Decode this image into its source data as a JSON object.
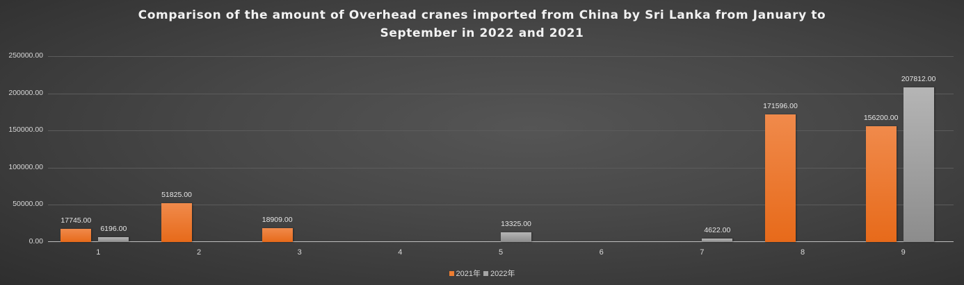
{
  "chart_data": {
    "type": "bar",
    "title": "Comparison of the amount of Overhead cranes imported from China by Sri Lanka from January to September in 2022 and 2021",
    "title_lines": [
      "Comparison of the amount of Overhead cranes imported from China by Sri Lanka from January to",
      "September in 2022 and 2021"
    ],
    "xlabel": "",
    "ylabel": "",
    "categories": [
      "1",
      "2",
      "3",
      "4",
      "5",
      "6",
      "7",
      "8",
      "9"
    ],
    "series": [
      {
        "name": "2021年",
        "color": "#ed7d31",
        "values": [
          17745.0,
          51825.0,
          18909.0,
          null,
          null,
          null,
          null,
          171596.0,
          156200.0
        ]
      },
      {
        "name": "2022年",
        "color": "#a5a5a5",
        "values": [
          6196.0,
          null,
          null,
          null,
          13325.0,
          null,
          4622.0,
          null,
          207812.0
        ]
      }
    ],
    "ylim": [
      0,
      250000
    ],
    "yticks": [
      "0.00",
      "50000.00",
      "100000.00",
      "150000.00",
      "200000.00",
      "250000.00"
    ],
    "grid": true,
    "legend_position": "bottom",
    "data_labels": true
  }
}
